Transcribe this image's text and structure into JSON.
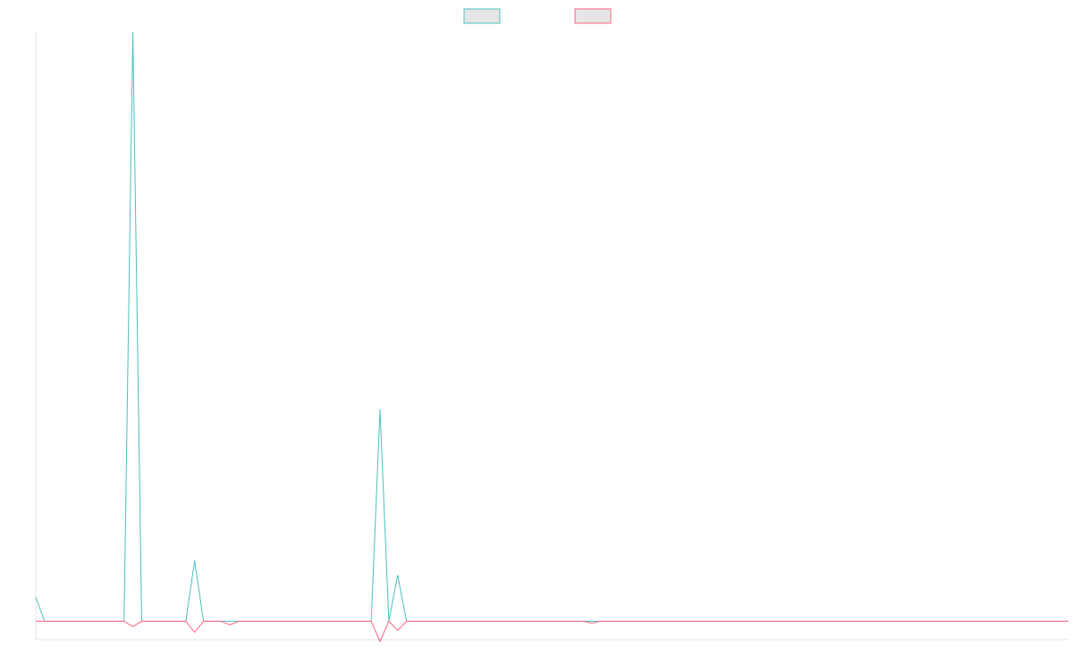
{
  "chart_data": {
    "type": "line",
    "title": "",
    "xlabel": "",
    "ylabel": "",
    "grid": false,
    "legend": {
      "placement": "top-center",
      "entries": [
        {
          "color": "#4bc0c0",
          "fill": "#e6e6e6"
        },
        {
          "color": "#ff6384",
          "fill": "#e6e6e6"
        }
      ]
    },
    "n_points": 118,
    "ylim": [
      -1,
      32
    ],
    "series": [
      {
        "color": "#4bc0c0",
        "sparse_values": {
          "0": 1.3,
          "11": 32,
          "18": 3.3,
          "39": 11.5,
          "40": 0,
          "41": 2.5
        },
        "default": 0
      },
      {
        "color": "#ff6384",
        "sparse_values": {
          "11": -0.3,
          "18": -0.6,
          "22": -0.2,
          "39": -1.1,
          "41": -0.5,
          "63": -0.1
        },
        "default": 0
      }
    ]
  }
}
